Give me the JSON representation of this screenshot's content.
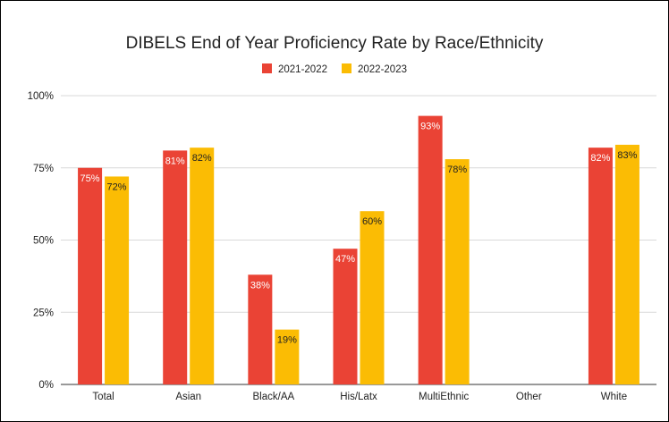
{
  "chart_data": {
    "type": "bar",
    "title": "DIBELS End of Year Proficiency Rate by Race/Ethnicity",
    "categories": [
      "Total",
      "Asian",
      "Black/AA",
      "His/Latx",
      "MultiEthnic",
      "Other",
      "White"
    ],
    "series": [
      {
        "name": "2021-2022",
        "color": "#ea4335",
        "label_color": "#ffffff",
        "values": [
          75,
          81,
          38,
          47,
          93,
          null,
          82
        ],
        "labels": [
          "75%",
          "81%",
          "38%",
          "47%",
          "93%",
          "",
          "82%"
        ]
      },
      {
        "name": "2022-2023",
        "color": "#fbbc04",
        "label_color": "#222222",
        "values": [
          72,
          82,
          19,
          60,
          78,
          null,
          83
        ],
        "labels": [
          "72%",
          "82%",
          "19%",
          "60%",
          "78%",
          "",
          "83%"
        ]
      }
    ],
    "y_ticks": [
      {
        "value": 0,
        "label": "0%"
      },
      {
        "value": 25,
        "label": "25%"
      },
      {
        "value": 50,
        "label": "50%"
      },
      {
        "value": 75,
        "label": "75%"
      },
      {
        "value": 100,
        "label": "100%"
      }
    ],
    "ylim": [
      0,
      100
    ],
    "grid": true,
    "legend_position": "top-center",
    "xlabel": "",
    "ylabel": ""
  }
}
